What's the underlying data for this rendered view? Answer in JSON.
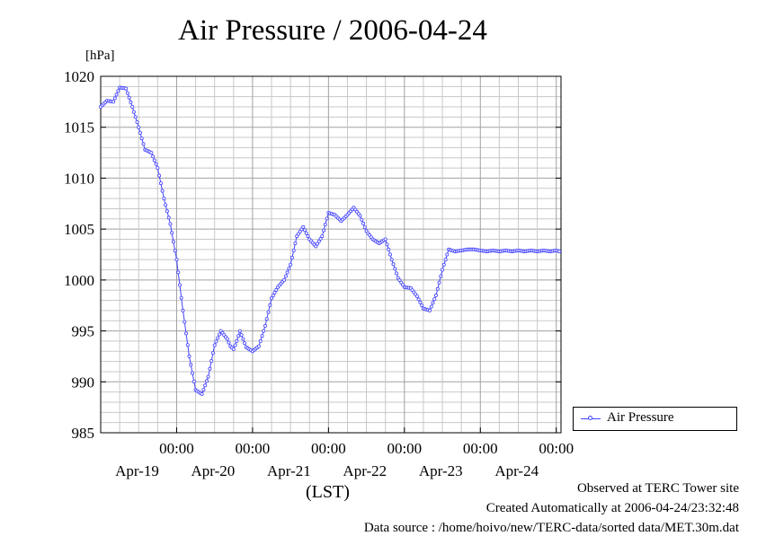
{
  "chart_data": {
    "type": "line",
    "title": "Air Pressure / 2006-04-24",
    "ylabel": "[hPa]",
    "xlabel": "(LST)",
    "ylim": [
      985,
      1020
    ],
    "y_ticks": [
      "985",
      "990",
      "995",
      "1000",
      "1005",
      "1010",
      "1015",
      "1020"
    ],
    "x_ticks": [
      {
        "time": "00:00",
        "date": "Apr-19"
      },
      {
        "time": "00:00",
        "date": "Apr-20"
      },
      {
        "time": "00:00",
        "date": "Apr-21"
      },
      {
        "time": "00:00",
        "date": "Apr-22"
      },
      {
        "time": "00:00",
        "date": "Apr-23"
      },
      {
        "time": "00:00",
        "date": "Apr-24"
      }
    ],
    "xlim": [
      "2006-04-18T00:00",
      "2006-04-24T01:30"
    ],
    "grid": true,
    "legend_position": "bottom-right-outside",
    "series": [
      {
        "name": "Air Pressure",
        "color": "#4444ff",
        "x": [
          "2006-04-18T00:00",
          "2006-04-18T02:00",
          "2006-04-18T04:00",
          "2006-04-18T06:00",
          "2006-04-18T08:00",
          "2006-04-18T10:00",
          "2006-04-18T12:00",
          "2006-04-18T14:00",
          "2006-04-18T16:00",
          "2006-04-18T18:00",
          "2006-04-18T20:00",
          "2006-04-18T22:00",
          "2006-04-19T00:00",
          "2006-04-19T02:00",
          "2006-04-19T04:00",
          "2006-04-19T06:00",
          "2006-04-19T08:00",
          "2006-04-19T10:00",
          "2006-04-19T12:00",
          "2006-04-19T14:00",
          "2006-04-19T16:00",
          "2006-04-19T17:00",
          "2006-04-19T18:00",
          "2006-04-19T19:00",
          "2006-04-19T20:00",
          "2006-04-19T22:00",
          "2006-04-20T00:00",
          "2006-04-20T02:00",
          "2006-04-20T04:00",
          "2006-04-20T06:00",
          "2006-04-20T08:00",
          "2006-04-20T10:00",
          "2006-04-20T12:00",
          "2006-04-20T14:00",
          "2006-04-20T16:00",
          "2006-04-20T18:00",
          "2006-04-20T20:00",
          "2006-04-20T22:00",
          "2006-04-21T00:00",
          "2006-04-21T02:00",
          "2006-04-21T04:00",
          "2006-04-21T06:00",
          "2006-04-21T08:00",
          "2006-04-21T10:00",
          "2006-04-21T12:00",
          "2006-04-21T14:00",
          "2006-04-21T16:00",
          "2006-04-21T18:00",
          "2006-04-21T20:00",
          "2006-04-21T22:00",
          "2006-04-22T00:00",
          "2006-04-22T02:00",
          "2006-04-22T04:00",
          "2006-04-22T06:00",
          "2006-04-22T08:00",
          "2006-04-22T10:00",
          "2006-04-22T12:00",
          "2006-04-22T14:00",
          "2006-04-22T16:00",
          "2006-04-22T18:00",
          "2006-04-22T20:00",
          "2006-04-22T22:00",
          "2006-04-23T00:00",
          "2006-04-23T02:00",
          "2006-04-23T04:00",
          "2006-04-23T06:00",
          "2006-04-23T08:00",
          "2006-04-23T10:00",
          "2006-04-23T12:00",
          "2006-04-23T14:00",
          "2006-04-23T16:00",
          "2006-04-23T18:00",
          "2006-04-23T20:00",
          "2006-04-23T22:00",
          "2006-04-24T00:00",
          "2006-04-24T01:00"
        ],
        "values": [
          1017.0,
          1017.6,
          1017.5,
          1018.9,
          1018.8,
          1017.0,
          1015.0,
          1012.8,
          1012.5,
          1011.0,
          1008.0,
          1005.5,
          1002.0,
          997.0,
          992.5,
          989.2,
          988.8,
          990.5,
          993.6,
          995.0,
          994.2,
          993.5,
          993.2,
          994.0,
          995.0,
          993.4,
          993.0,
          993.5,
          995.5,
          998.2,
          999.3,
          1000.0,
          1001.5,
          1004.3,
          1005.2,
          1004.0,
          1003.3,
          1004.3,
          1006.6,
          1006.4,
          1005.8,
          1006.4,
          1007.1,
          1006.3,
          1004.8,
          1004.0,
          1003.6,
          1004.0,
          1002.0,
          1000.2,
          999.3,
          999.2,
          998.4,
          997.2,
          997.0,
          998.5,
          1001.0,
          1003.0,
          1002.8,
          1002.9,
          1003.0,
          1003.0,
          1002.9,
          1002.8,
          1002.9,
          1002.8,
          1002.9,
          1002.8,
          1002.9,
          1002.8,
          1002.9,
          1002.8,
          1002.9,
          1002.8,
          1002.9,
          1002.8
        ]
      }
    ]
  },
  "footer": {
    "observed": "Observed at TERC Tower site",
    "created": "Created Automatically at 2006-04-24/23:32:48",
    "source": "Data source : /home/hoivo/new/TERC-data/sorted  data/MET.30m.dat"
  }
}
